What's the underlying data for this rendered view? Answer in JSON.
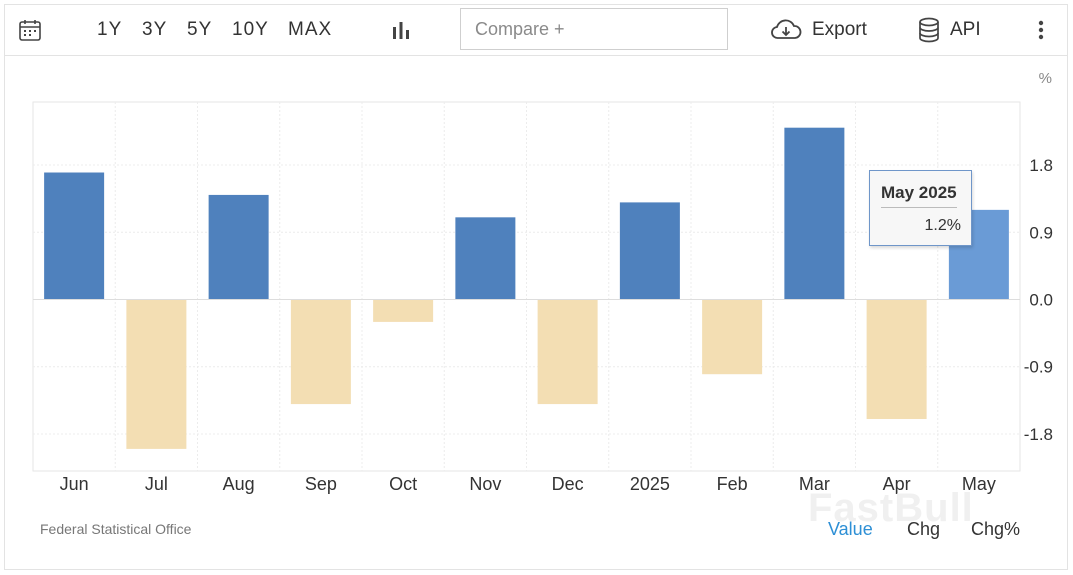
{
  "toolbar": {
    "ranges": [
      "1Y",
      "3Y",
      "5Y",
      "10Y",
      "MAX"
    ],
    "compare_placeholder": "Compare +",
    "export_label": "Export",
    "api_label": "API"
  },
  "footer": {
    "source": "Federal Statistical Office",
    "modes": [
      "Value",
      "Chg",
      "Chg%"
    ],
    "active_mode": "Value",
    "watermark": "FastBull"
  },
  "tooltip": {
    "title": "May 2025",
    "value": "1.2%"
  },
  "colors": {
    "positive": "#4f81bd",
    "positive_highlight": "#6a9bd6",
    "negative": "#f3deb3",
    "active_mode": "#2d8fd5"
  },
  "chart_data": {
    "type": "bar",
    "unit_label": "%",
    "categories": [
      "Jun",
      "Jul",
      "Aug",
      "Sep",
      "Oct",
      "Nov",
      "Dec",
      "2025",
      "Feb",
      "Mar",
      "Apr",
      "May"
    ],
    "values": [
      1.7,
      -2.0,
      1.4,
      -1.4,
      -0.3,
      1.1,
      -1.4,
      1.3,
      -1.0,
      2.3,
      -1.6,
      1.2
    ],
    "highlight_index": 11,
    "y_ticks": [
      1.8,
      0.9,
      0.0,
      -0.9,
      -1.8
    ],
    "y_tick_labels": [
      "1.8",
      "0.9",
      "0.0",
      "-0.9",
      "-1.8"
    ],
    "ylim": [
      -2.3,
      2.6
    ],
    "grid": true,
    "legend": "none"
  }
}
